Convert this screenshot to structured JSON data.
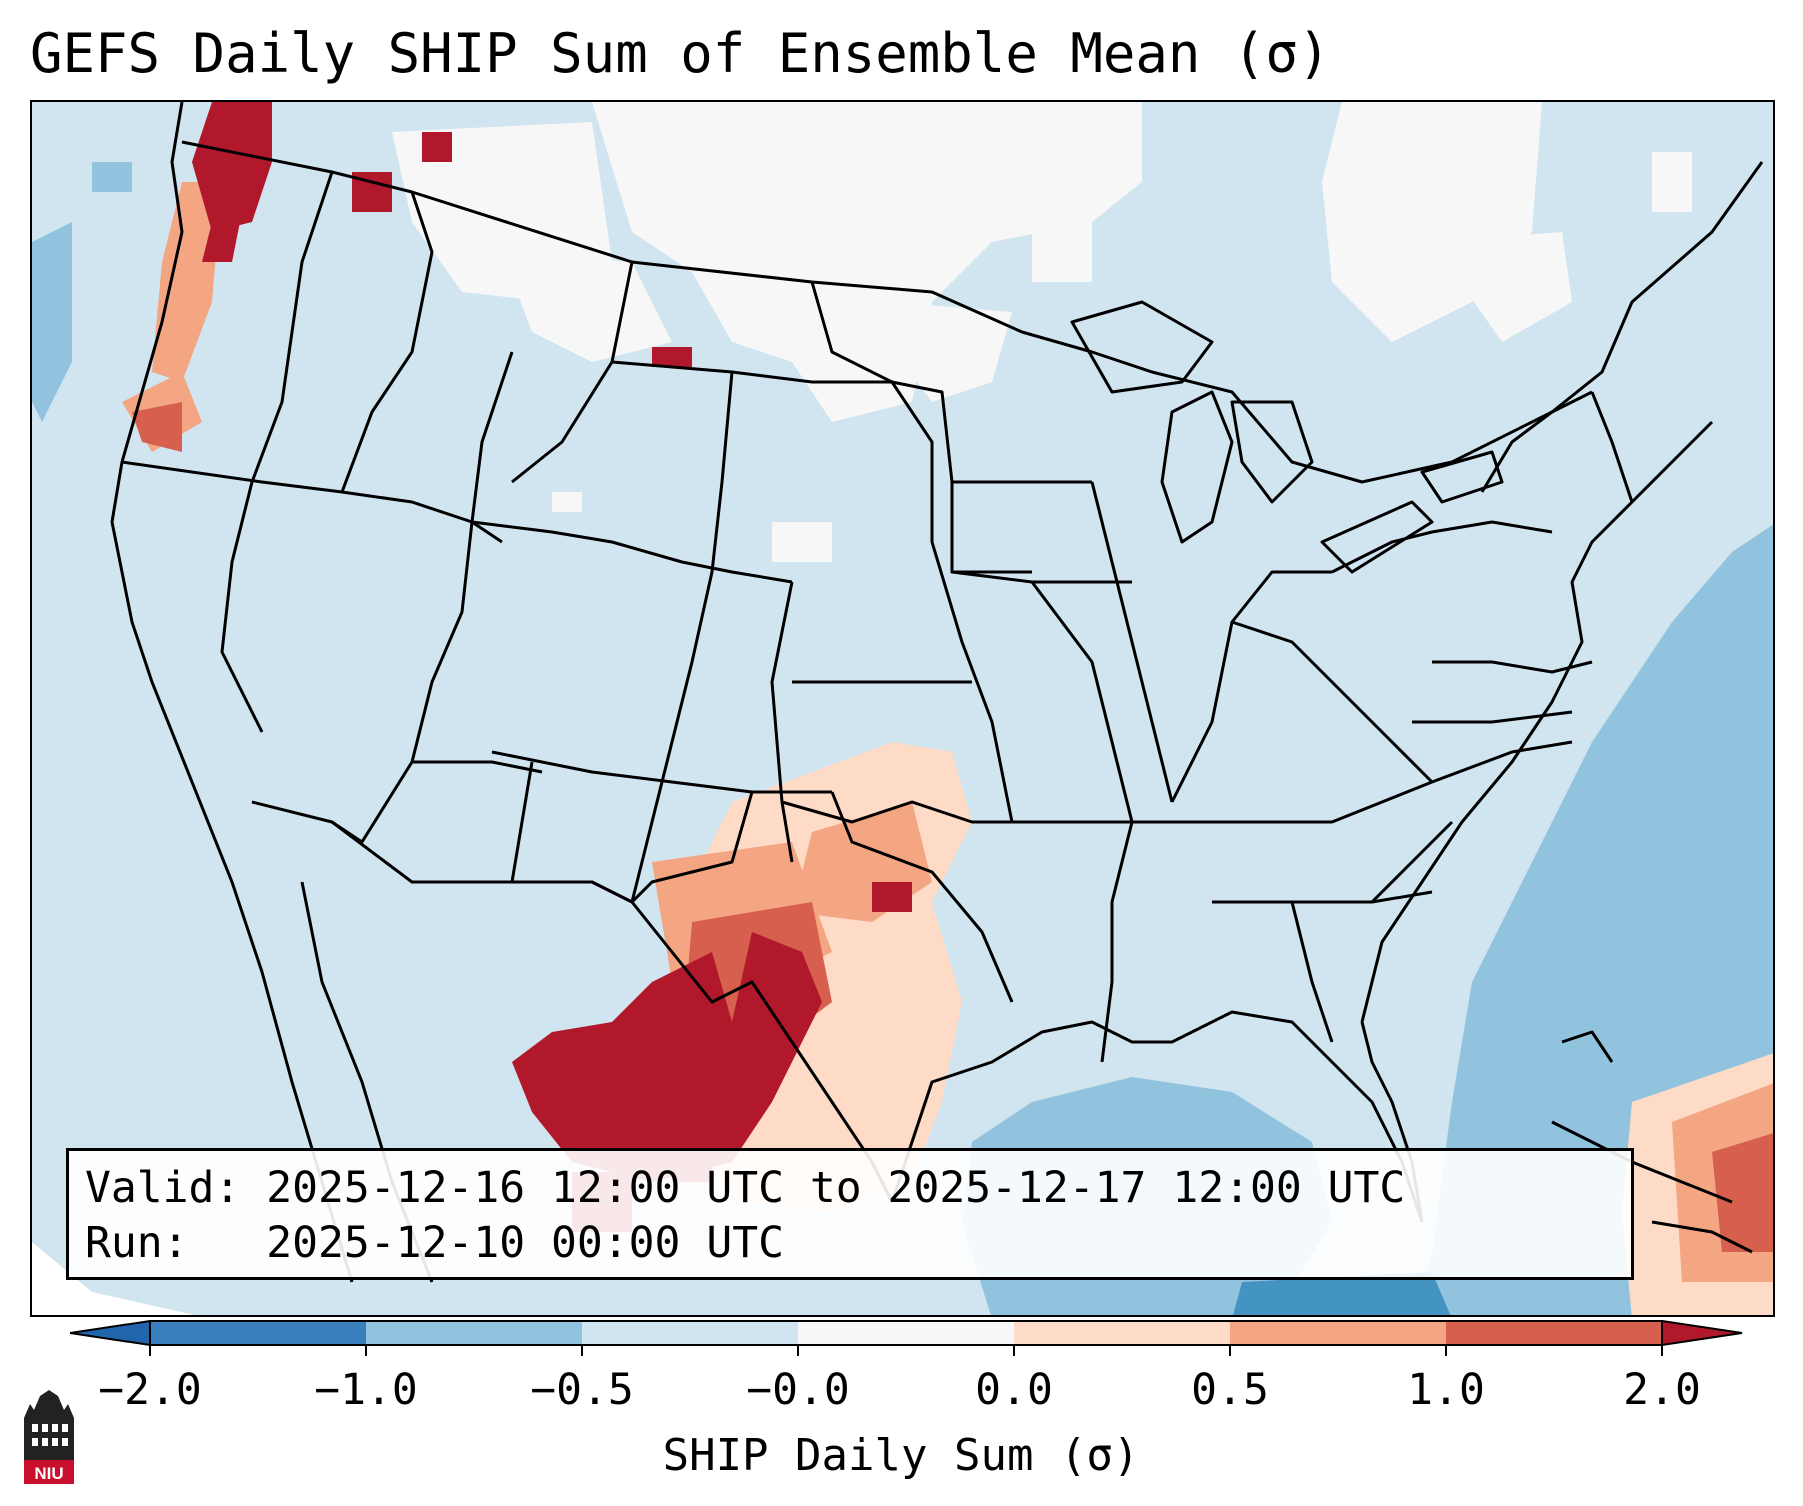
{
  "title": "GEFS Daily SHIP Sum of Ensemble Mean (σ)",
  "info": {
    "valid_label": "Valid:",
    "valid_value": "2025-12-16 12:00 UTC to 2025-12-17 12:00 UTC",
    "run_label": "Run:",
    "run_value": "2025-12-10 00:00 UTC"
  },
  "colorbar": {
    "label": "SHIP Daily Sum (σ)",
    "ticks": [
      "−2.0",
      "−1.0",
      "−0.5",
      "−0.0",
      "0.0",
      "0.5",
      "1.0",
      "2.0"
    ],
    "colors": [
      "#3a7fbd",
      "#92c3de",
      "#d1e5f0",
      "#f7f7f7",
      "#fddbc7",
      "#f4a582",
      "#d6604d",
      "#b2182b"
    ],
    "extend_low_color": "#2166ac",
    "extend_high_color": "#b2182b"
  },
  "logo": {
    "text": "NIU",
    "color": "#c8102e"
  }
}
